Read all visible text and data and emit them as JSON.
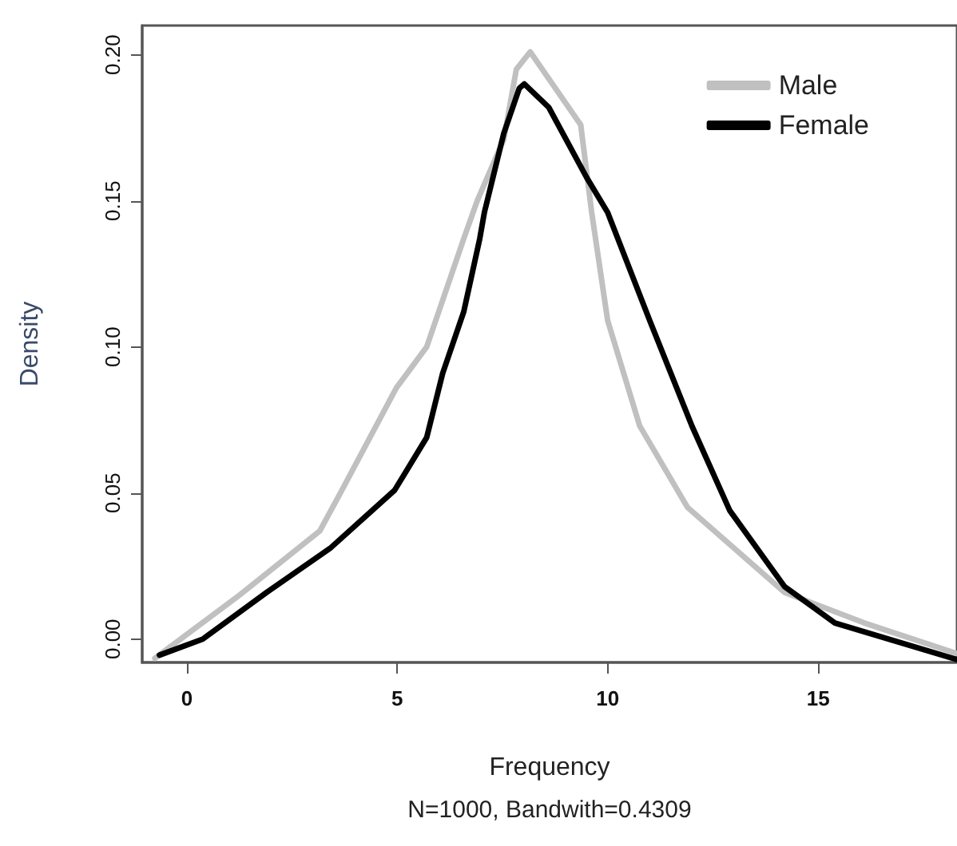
{
  "chart_data": {
    "type": "line",
    "xlabel": "Frequency",
    "ylabel": "Density",
    "annotations": [
      "N=1000, Bandwith=0.4309"
    ],
    "xlim": [
      -1.06,
      18.3
    ],
    "ylim": [
      -0.008,
      0.21
    ],
    "xticks": [
      0,
      5,
      10,
      15
    ],
    "yticks": [
      {
        "value": 0,
        "label": "0.00"
      },
      {
        "value": 0.05,
        "label": "0.05"
      },
      {
        "value": 0.1,
        "label": "0.10"
      },
      {
        "value": 0.15,
        "label": "0.15"
      },
      {
        "value": 0.2,
        "label": "0.20"
      }
    ],
    "grid": false,
    "legend": "top right",
    "marker": "none",
    "line_style": "solid",
    "series": [
      {
        "name": "Male",
        "color": "#c0c0c0",
        "x": [
          -0.76,
          1.25,
          3.16,
          3.65,
          4.98,
          5.7,
          6.58,
          6.9,
          7.53,
          7.83,
          8.16,
          9.36,
          9.62,
          10.0,
          10.76,
          11.9,
          14.2,
          16.1,
          18.3
        ],
        "values": [
          -0.0066,
          0.015,
          0.037,
          0.05,
          0.086,
          0.1,
          0.137,
          0.15,
          0.171,
          0.195,
          0.201,
          0.176,
          0.146,
          0.109,
          0.073,
          0.045,
          0.016,
          0.0055,
          -0.005
        ]
      },
      {
        "name": "Female",
        "color": "#000000",
        "x": [
          -0.65,
          0.38,
          1.9,
          3.4,
          4.94,
          5.7,
          6.08,
          6.58,
          6.96,
          7.07,
          7.53,
          7.9,
          8.02,
          8.6,
          9.5,
          10.0,
          11.0,
          12.0,
          12.9,
          14.2,
          15.4,
          18.3
        ],
        "values": [
          -0.0055,
          0.0,
          0.016,
          0.031,
          0.051,
          0.069,
          0.091,
          0.112,
          0.137,
          0.146,
          0.173,
          0.1885,
          0.19,
          0.182,
          0.158,
          0.146,
          0.109,
          0.073,
          0.044,
          0.018,
          0.0055,
          -0.007
        ]
      }
    ]
  }
}
